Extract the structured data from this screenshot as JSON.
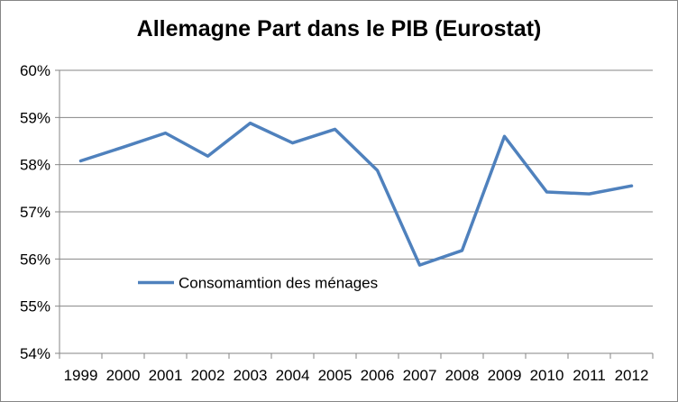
{
  "chart_data": {
    "type": "line",
    "title": "Allemagne Part dans le PIB (Eurostat)",
    "xlabel": "",
    "ylabel": "",
    "categories": [
      "1999",
      "2000",
      "2001",
      "2002",
      "2003",
      "2004",
      "2005",
      "2006",
      "2007",
      "2008",
      "2009",
      "2010",
      "2011",
      "2012"
    ],
    "y_ticks": [
      "54%",
      "55%",
      "56%",
      "57%",
      "58%",
      "59%",
      "60%"
    ],
    "ylim": [
      54,
      60
    ],
    "grid": true,
    "legend_position": "inside-left",
    "series": [
      {
        "name": "Consomamtion des ménages",
        "color": "#4f81bd",
        "values": [
          58.08,
          58.37,
          58.67,
          58.18,
          58.88,
          58.46,
          58.75,
          57.88,
          55.87,
          56.18,
          58.6,
          57.42,
          57.38,
          57.55
        ]
      }
    ]
  }
}
